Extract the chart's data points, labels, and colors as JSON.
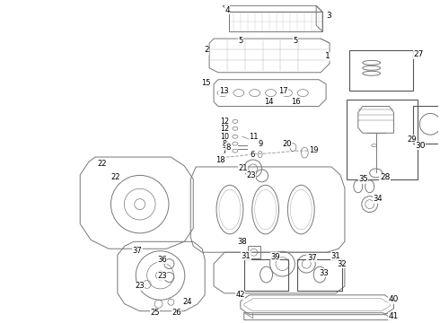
{
  "fig_width": 4.9,
  "fig_height": 3.6,
  "dpi": 100,
  "background_color": "#ffffff",
  "image_data": ""
}
